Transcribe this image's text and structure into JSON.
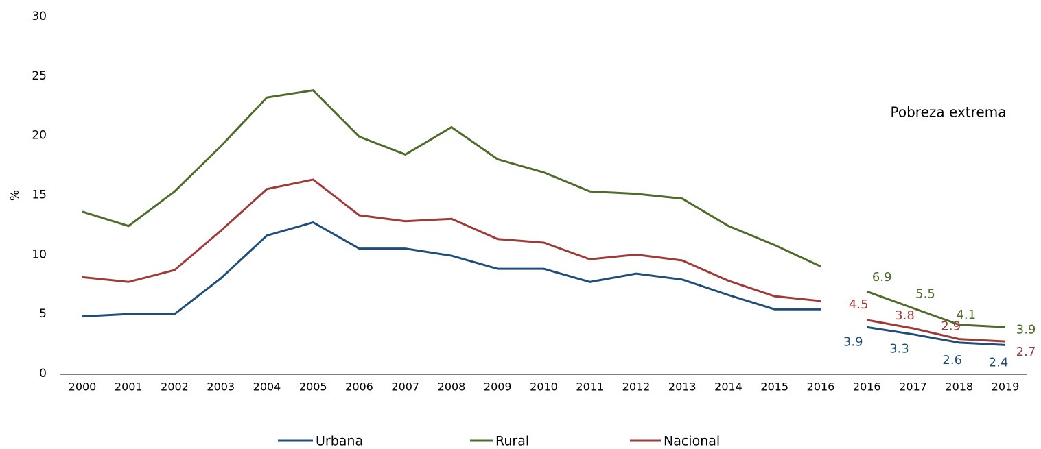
{
  "chart_data": {
    "type": "line",
    "annotation": "Pobreza extrema",
    "y_label": "%",
    "categories": [
      "2000",
      "2001",
      "2002",
      "2003",
      "2004",
      "2005",
      "2006",
      "2007",
      "2008",
      "2009",
      "2010",
      "2011",
      "2012",
      "2013",
      "2014",
      "2015",
      "2016",
      "2016",
      "2017",
      "2018",
      "2019"
    ],
    "ylim": [
      0,
      30
    ],
    "yticks": [
      0,
      5,
      10,
      15,
      20,
      25,
      30
    ],
    "series": [
      {
        "name": "Urbana",
        "color": "#1f4e79",
        "values": [
          4.8,
          5.0,
          5.0,
          8.0,
          11.6,
          12.7,
          10.5,
          10.5,
          9.9,
          8.8,
          8.8,
          7.7,
          8.4,
          7.9,
          6.6,
          5.4,
          5.4,
          3.9,
          3.3,
          2.6,
          2.4
        ],
        "value_labels": [
          null,
          null,
          null,
          null,
          null,
          null,
          null,
          null,
          null,
          null,
          null,
          null,
          null,
          null,
          null,
          null,
          null,
          "3.9",
          "3.3",
          "2.6",
          "2.4"
        ]
      },
      {
        "name": "Rural",
        "color": "#4e6b2a",
        "values": [
          13.6,
          12.4,
          15.3,
          19.1,
          23.2,
          23.8,
          19.9,
          18.4,
          20.7,
          18.0,
          16.9,
          15.3,
          15.1,
          14.7,
          12.4,
          10.8,
          9.0,
          6.9,
          5.5,
          4.1,
          3.9
        ],
        "value_labels": [
          null,
          null,
          null,
          null,
          null,
          null,
          null,
          null,
          null,
          null,
          null,
          null,
          null,
          null,
          null,
          null,
          null,
          "6.9",
          "5.5",
          "4.1",
          "3.9"
        ]
      },
      {
        "name": "Nacional",
        "color": "#9e3a38",
        "values": [
          8.1,
          7.7,
          8.7,
          12.0,
          15.5,
          16.3,
          13.3,
          12.8,
          13.0,
          11.3,
          11.0,
          9.6,
          10.0,
          9.5,
          7.8,
          6.5,
          6.1,
          4.5,
          3.8,
          2.9,
          2.7
        ],
        "value_labels": [
          null,
          null,
          null,
          null,
          null,
          null,
          null,
          null,
          null,
          null,
          null,
          null,
          null,
          null,
          null,
          null,
          null,
          "4.5",
          "3.8",
          "2.9",
          "2.7"
        ]
      }
    ]
  }
}
